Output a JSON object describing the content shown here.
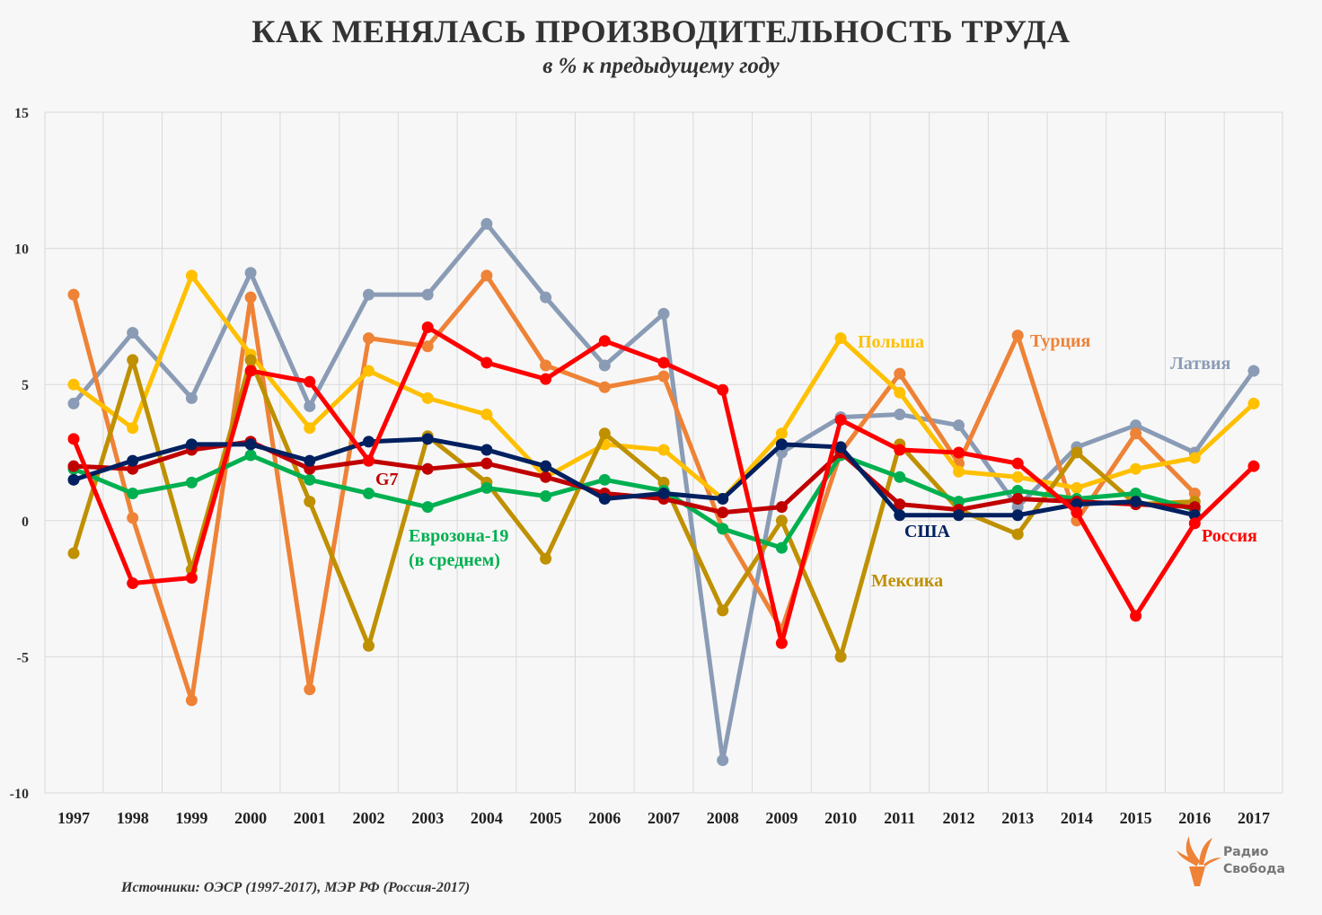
{
  "chart_data": {
    "type": "line",
    "title": "КАК МЕНЯЛАСЬ ПРОИЗВОДИТЕЛЬНОСТЬ ТРУДА",
    "subtitle": "в % к предыдущему году",
    "xlabel": "",
    "ylabel": "",
    "ylim": [
      -10,
      15
    ],
    "yticks": [
      15,
      10,
      5,
      0,
      -5,
      -10
    ],
    "grid": true,
    "x": [
      "1997",
      "1998",
      "1999",
      "2000",
      "2001",
      "2002",
      "2003",
      "2004",
      "2005",
      "2006",
      "2007",
      "2008",
      "2009",
      "2010",
      "2011",
      "2012",
      "2013",
      "2014",
      "2015",
      "2016",
      "2017"
    ],
    "series": [
      {
        "name": "Латвия",
        "color": "#8a9bb5",
        "values": [
          4.3,
          6.9,
          4.5,
          9.1,
          4.2,
          8.3,
          8.3,
          10.9,
          8.2,
          5.7,
          7.6,
          -8.8,
          2.5,
          3.8,
          3.9,
          3.5,
          0.5,
          2.7,
          3.5,
          2.5,
          5.5
        ]
      },
      {
        "name": "Турция",
        "color": "#ee8236",
        "values": [
          8.3,
          0.1,
          -6.6,
          8.2,
          -6.2,
          6.7,
          6.4,
          9.0,
          5.7,
          4.9,
          5.3,
          -0.3,
          -4.0,
          2.5,
          5.4,
          2.1,
          6.8,
          0.0,
          3.2,
          1.0,
          null
        ]
      },
      {
        "name": "Польша",
        "color": "#ffc000",
        "values": [
          5.0,
          3.4,
          9.0,
          6.1,
          3.4,
          5.5,
          4.5,
          3.9,
          1.6,
          2.8,
          2.6,
          0.8,
          3.2,
          6.7,
          4.7,
          1.8,
          1.6,
          1.2,
          1.9,
          2.3,
          4.3
        ]
      },
      {
        "name": "Мексика",
        "color": "#bf9000",
        "values": [
          -1.2,
          5.9,
          -1.8,
          5.9,
          0.7,
          -4.6,
          3.1,
          1.4,
          -1.4,
          3.2,
          1.4,
          -3.3,
          0.0,
          -5.0,
          2.8,
          0.4,
          -0.5,
          2.5,
          0.6,
          0.7,
          null
        ]
      },
      {
        "name": "Еврозона-19 (в среднем)",
        "color": "#00b050",
        "values": [
          1.9,
          1.0,
          1.4,
          2.4,
          1.5,
          1.0,
          0.5,
          1.2,
          0.9,
          1.5,
          1.1,
          -0.3,
          -1.0,
          2.4,
          1.6,
          0.7,
          1.1,
          0.8,
          1.0,
          0.4,
          null
        ]
      },
      {
        "name": "G7",
        "color": "#c00000",
        "values": [
          2.0,
          1.9,
          2.6,
          2.9,
          1.9,
          2.2,
          1.9,
          2.1,
          1.6,
          1.0,
          0.8,
          0.3,
          0.5,
          2.5,
          0.6,
          0.4,
          0.8,
          0.7,
          0.6,
          0.5,
          null
        ]
      },
      {
        "name": "США",
        "color": "#002060",
        "values": [
          1.5,
          2.2,
          2.8,
          2.8,
          2.2,
          2.9,
          3.0,
          2.6,
          2.0,
          0.8,
          1.0,
          0.8,
          2.8,
          2.7,
          0.2,
          0.2,
          0.2,
          0.6,
          0.7,
          0.2,
          null
        ]
      },
      {
        "name": "Россия",
        "color": "#ff0000",
        "values": [
          3.0,
          -2.3,
          -2.1,
          5.5,
          5.1,
          2.2,
          7.1,
          5.8,
          5.2,
          6.6,
          5.8,
          4.8,
          -4.5,
          3.7,
          2.6,
          2.5,
          2.1,
          0.3,
          -3.5,
          -0.1,
          2.0
        ]
      }
    ],
    "annotations": {
      "latvia": "Латвия",
      "turkey": "Турция",
      "poland": "Польша",
      "mexico": "Мексика",
      "eurozone_line1": "Еврозона-19",
      "eurozone_line2": "(в среднем)",
      "g7": "G7",
      "usa": "США",
      "russia": "Россия"
    }
  },
  "source": "Источники: ОЭСР (1997-2017), МЭР РФ (Россия-2017)",
  "logo": {
    "line1": "Радио",
    "line2": "Свобода"
  }
}
